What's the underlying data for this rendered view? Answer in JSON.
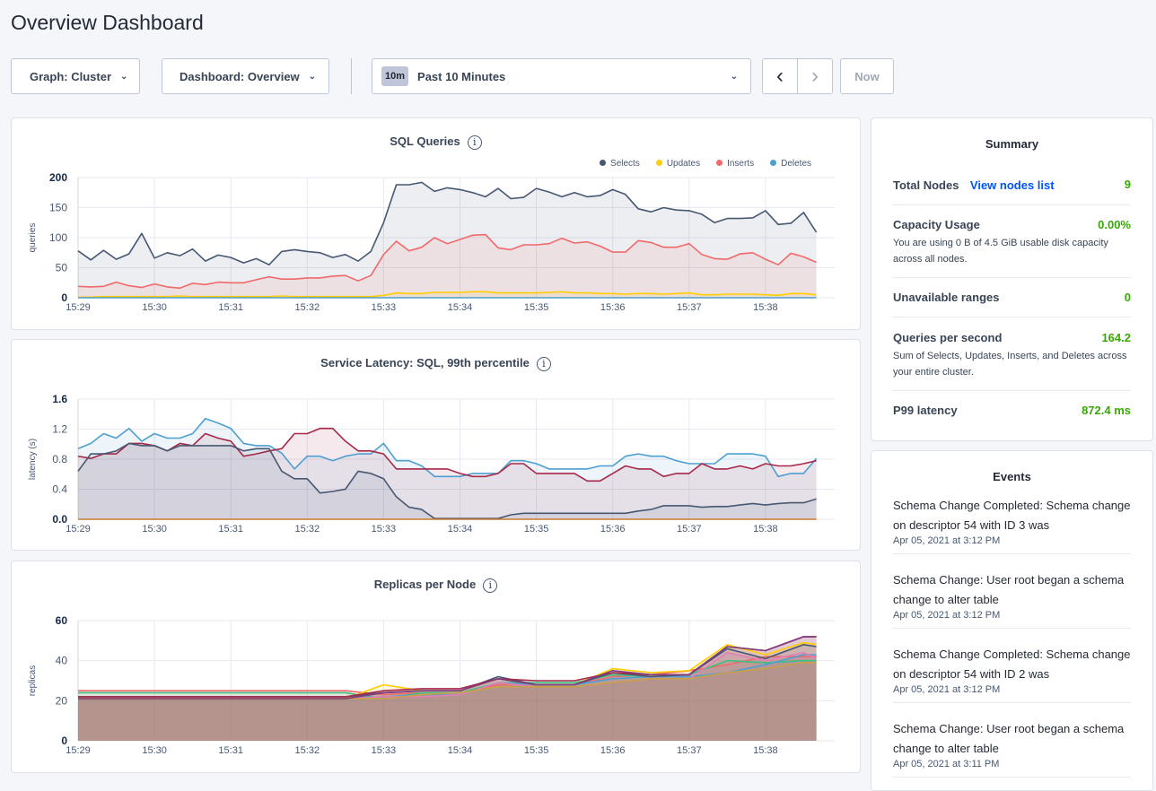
{
  "page": {
    "title": "Overview Dashboard"
  },
  "toolbar": {
    "graph": "Graph: Cluster",
    "dashboard": "Dashboard: Overview",
    "range_badge": "10m",
    "range": "Past 10 Minutes",
    "prev": "‹",
    "next": "›",
    "now": "Now"
  },
  "x_times": [
    "15:29:00",
    "15:29:10",
    "15:29:20",
    "15:29:30",
    "15:29:40",
    "15:29:50",
    "15:30:00",
    "15:30:10",
    "15:30:20",
    "15:30:30",
    "15:30:40",
    "15:30:50",
    "15:31:00",
    "15:31:10",
    "15:31:20",
    "15:31:30",
    "15:31:40",
    "15:31:50",
    "15:32:00",
    "15:32:10",
    "15:32:20",
    "15:32:30",
    "15:32:40",
    "15:32:50",
    "15:33:00",
    "15:33:10",
    "15:33:20",
    "15:33:30",
    "15:33:40",
    "15:33:50",
    "15:34:00",
    "15:34:10",
    "15:34:20",
    "15:34:30",
    "15:34:40",
    "15:34:50",
    "15:35:00",
    "15:35:10",
    "15:35:20",
    "15:35:30",
    "15:35:40",
    "15:35:50",
    "15:36:00",
    "15:36:10",
    "15:36:20",
    "15:36:30",
    "15:36:40",
    "15:36:50",
    "15:37:00",
    "15:37:10",
    "15:37:20",
    "15:37:30",
    "15:37:40",
    "15:37:50",
    "15:38:00",
    "15:38:10",
    "15:38:20",
    "15:38:30",
    "15:38:40"
  ],
  "chart_data": [
    {
      "type": "area",
      "title": "SQL Queries",
      "ylabel": "queries",
      "ylim": [
        0,
        200
      ],
      "yticks": [
        "0",
        "50",
        "100",
        "150",
        "200"
      ],
      "xticks": [
        "15:29",
        "15:30",
        "15:31",
        "15:32",
        "15:33",
        "15:34",
        "15:35",
        "15:36",
        "15:37",
        "15:38"
      ],
      "legend": "top-right",
      "grid": true,
      "series": [
        {
          "name": "Selects",
          "color": "#475872",
          "values": [
            78,
            63,
            79,
            64,
            73,
            107,
            66,
            75,
            70,
            81,
            61,
            71,
            67,
            58,
            65,
            55,
            77,
            80,
            77,
            75,
            67,
            72,
            61,
            77,
            125,
            188,
            188,
            192,
            177,
            183,
            180,
            175,
            168,
            182,
            165,
            167,
            182,
            176,
            168,
            175,
            168,
            170,
            180,
            172,
            148,
            143,
            150,
            146,
            145,
            139,
            125,
            132,
            132,
            133,
            145,
            122,
            124,
            142,
            109
          ]
        },
        {
          "name": "Updates",
          "color": "#ffcd02",
          "values": [
            1,
            1,
            2,
            2,
            2,
            2,
            2,
            2,
            3,
            2,
            2,
            2,
            2,
            2,
            2,
            2,
            3,
            2,
            2,
            2,
            2,
            2,
            2,
            2,
            4,
            8,
            7,
            7,
            9,
            9,
            9,
            10,
            10,
            8,
            8,
            8,
            8,
            9,
            10,
            8,
            8,
            7,
            7,
            6,
            7,
            7,
            6,
            7,
            8,
            5,
            5,
            6,
            6,
            6,
            5,
            4,
            7,
            7,
            5
          ]
        },
        {
          "name": "Inserts",
          "color": "#f16969",
          "values": [
            19,
            18,
            19,
            26,
            20,
            17,
            23,
            18,
            16,
            24,
            22,
            26,
            25,
            25,
            30,
            35,
            31,
            31,
            33,
            33,
            36,
            37,
            28,
            37,
            72,
            94,
            78,
            84,
            100,
            90,
            97,
            104,
            105,
            83,
            80,
            88,
            88,
            90,
            99,
            91,
            93,
            86,
            76,
            76,
            95,
            92,
            84,
            84,
            90,
            72,
            65,
            64,
            73,
            75,
            64,
            55,
            74,
            68,
            59
          ]
        },
        {
          "name": "Deletes",
          "color": "#4e9fd1",
          "values": [
            0,
            0,
            0,
            0,
            0,
            0,
            0,
            0,
            0,
            0,
            0,
            0,
            0,
            0,
            0,
            0,
            0,
            0,
            0,
            0,
            0,
            0,
            0,
            0,
            0,
            0,
            0,
            0,
            0,
            0,
            0,
            0,
            0,
            0,
            0,
            0,
            0,
            0,
            0,
            0,
            0,
            0,
            0,
            0,
            0,
            0,
            0,
            0,
            0,
            0,
            0,
            0,
            0,
            0,
            0,
            0,
            0,
            0,
            0
          ]
        }
      ]
    },
    {
      "type": "area",
      "title": "Service Latency: SQL, 99th percentile",
      "ylabel": "latency (s)",
      "ylim": [
        0,
        1.6
      ],
      "yticks": [
        "0.0",
        "0.4",
        "0.8",
        "1.2",
        "1.6"
      ],
      "xticks": [
        "15:29",
        "15:30",
        "15:31",
        "15:32",
        "15:33",
        "15:34",
        "15:35",
        "15:36",
        "15:37",
        "15:38"
      ],
      "grid": true,
      "series": [
        {
          "color": "#4e9fd1",
          "values": [
            0.94,
            1.01,
            1.14,
            1.08,
            1.21,
            1.04,
            1.14,
            1.08,
            1.08,
            1.14,
            1.34,
            1.28,
            1.21,
            1.01,
            0.98,
            0.98,
            0.88,
            0.67,
            0.84,
            0.84,
            0.78,
            0.84,
            0.87,
            0.87,
            1.01,
            0.78,
            0.78,
            0.71,
            0.57,
            0.57,
            0.57,
            0.61,
            0.61,
            0.61,
            0.78,
            0.78,
            0.74,
            0.67,
            0.67,
            0.67,
            0.67,
            0.71,
            0.71,
            0.84,
            0.87,
            0.84,
            0.84,
            0.78,
            0.74,
            0.74,
            0.74,
            0.87,
            0.87,
            0.87,
            0.84,
            0.57,
            0.61,
            0.61,
            0.81
          ]
        },
        {
          "color": "#a7294a",
          "values": [
            0.84,
            0.81,
            0.87,
            0.87,
            1.01,
            1.01,
            0.98,
            0.91,
            1.01,
            0.98,
            1.14,
            1.08,
            1.04,
            0.84,
            0.87,
            0.91,
            0.94,
            1.14,
            1.14,
            1.21,
            1.21,
            1.04,
            0.91,
            0.91,
            0.87,
            0.67,
            0.67,
            0.67,
            0.67,
            0.67,
            0.61,
            0.57,
            0.57,
            0.61,
            0.74,
            0.74,
            0.61,
            0.61,
            0.61,
            0.61,
            0.51,
            0.51,
            0.61,
            0.71,
            0.67,
            0.67,
            0.57,
            0.61,
            0.61,
            0.74,
            0.67,
            0.67,
            0.71,
            0.67,
            0.74,
            0.71,
            0.71,
            0.74,
            0.78
          ]
        },
        {
          "color": "#475872",
          "values": [
            0.64,
            0.87,
            0.87,
            0.91,
            1.01,
            0.98,
            0.98,
            0.91,
            0.98,
            0.98,
            0.98,
            0.98,
            0.98,
            0.91,
            0.94,
            0.94,
            0.64,
            0.54,
            0.54,
            0.35,
            0.37,
            0.4,
            0.64,
            0.61,
            0.54,
            0.3,
            0.16,
            0.13,
            0.01,
            0.01,
            0.01,
            0.01,
            0.01,
            0.01,
            0.06,
            0.08,
            0.08,
            0.08,
            0.08,
            0.08,
            0.08,
            0.08,
            0.08,
            0.08,
            0.11,
            0.13,
            0.18,
            0.18,
            0.18,
            0.16,
            0.17,
            0.17,
            0.19,
            0.21,
            0.19,
            0.21,
            0.22,
            0.22,
            0.27
          ]
        },
        {
          "color": "#c97a2f",
          "values": [
            0,
            0,
            0,
            0,
            0,
            0,
            0,
            0,
            0,
            0,
            0,
            0,
            0,
            0,
            0,
            0,
            0,
            0,
            0,
            0,
            0,
            0,
            0,
            0,
            0,
            0,
            0,
            0,
            0,
            0,
            0,
            0,
            0,
            0,
            0,
            0,
            0,
            0,
            0,
            0,
            0,
            0,
            0,
            0,
            0,
            0,
            0,
            0,
            0,
            0,
            0,
            0,
            0,
            0,
            0,
            0,
            0,
            0,
            0
          ]
        }
      ]
    },
    {
      "type": "area",
      "title": "Replicas per Node",
      "ylabel": "replicas",
      "ylim": [
        0,
        60
      ],
      "yticks": [
        "0",
        "20",
        "40",
        "60"
      ],
      "xticks": [
        "15:29",
        "15:30",
        "15:31",
        "15:32",
        "15:33",
        "15:34",
        "15:35",
        "15:36",
        "15:37",
        "15:38"
      ],
      "grid": true,
      "x": [
        "15:29:00",
        "15:29:30",
        "15:30:00",
        "15:30:30",
        "15:31:00",
        "15:31:30",
        "15:32:00",
        "15:32:30",
        "15:33:00",
        "15:33:30",
        "15:34:00",
        "15:34:30",
        "15:35:00",
        "15:35:30",
        "15:36:00",
        "15:36:30",
        "15:37:00",
        "15:37:30",
        "15:38:00",
        "15:38:30",
        "15:38:40"
      ],
      "series": [
        {
          "color": "#f16969",
          "values": [
            25,
            25,
            25,
            25,
            25,
            25,
            25,
            25,
            23,
            24,
            24,
            28,
            28,
            28,
            32,
            33,
            35,
            38,
            42,
            42,
            42
          ]
        },
        {
          "color": "#3fbf7f",
          "values": [
            24,
            24,
            24,
            24,
            24,
            24,
            24,
            24,
            21,
            24,
            24,
            29,
            29,
            29,
            33,
            32,
            33,
            40,
            39,
            40,
            40
          ]
        },
        {
          "color": "#4e9fd1",
          "values": [
            21,
            21,
            21,
            21,
            21,
            21,
            21,
            21,
            22,
            23,
            23,
            29,
            28,
            28,
            31,
            32,
            32,
            34,
            38,
            43,
            43
          ]
        },
        {
          "color": "#e57fb5",
          "values": [
            21,
            21,
            21,
            21,
            21,
            21,
            21,
            21,
            22,
            22,
            23,
            29,
            27,
            27,
            29,
            31,
            31,
            44,
            40,
            44,
            41
          ]
        },
        {
          "color": "#c8a04a",
          "values": [
            21,
            21,
            21,
            21,
            21,
            21,
            21,
            21,
            21,
            23,
            24,
            27,
            27,
            27,
            29,
            31,
            31,
            34,
            36,
            39,
            39
          ]
        },
        {
          "color": "#ffcd02",
          "values": [
            21,
            21,
            21,
            21,
            21,
            21,
            21,
            21,
            28,
            25,
            25,
            31,
            28,
            28,
            36,
            34,
            35,
            48,
            43,
            49,
            48
          ]
        },
        {
          "color": "#475872",
          "values": [
            22,
            22,
            22,
            22,
            22,
            22,
            22,
            22,
            24,
            25,
            25,
            32,
            28,
            28,
            34,
            32,
            33,
            46,
            41,
            48,
            47
          ]
        },
        {
          "color": "#a7294a",
          "values": [
            22,
            22,
            22,
            22,
            22,
            22,
            22,
            22,
            25,
            26,
            26,
            31,
            30,
            30,
            34,
            33,
            33,
            47,
            45,
            52,
            52
          ]
        },
        {
          "color": "#7e3c7e",
          "values": [
            21,
            21,
            21,
            21,
            21,
            21,
            21,
            21,
            24,
            25,
            25,
            31,
            28,
            28,
            35,
            33,
            33,
            47,
            45,
            52,
            52
          ]
        }
      ]
    }
  ],
  "summary": {
    "title": "Summary",
    "total_nodes": {
      "label": "Total Nodes",
      "link": "View nodes list",
      "value": "9"
    },
    "capacity": {
      "label": "Capacity Usage",
      "value": "0.00%",
      "desc": "You are using 0 B of 4.5 GiB usable disk capacity across all nodes."
    },
    "unavailable": {
      "label": "Unavailable ranges",
      "value": "0"
    },
    "qps": {
      "label": "Queries per second",
      "value": "164.2",
      "desc": "Sum of Selects, Updates, Inserts, and Deletes across your entire cluster."
    },
    "p99": {
      "label": "P99 latency",
      "value": "872.4 ms"
    }
  },
  "events": {
    "title": "Events",
    "items": [
      {
        "text": "Schema Change Completed: Schema change on descriptor 54 with ID 3 was",
        "date": "Apr 05, 2021 at 3:12 PM"
      },
      {
        "text": "Schema Change: User root began a schema change to alter table",
        "date": "Apr 05, 2021 at 3:12 PM"
      },
      {
        "text": "Schema Change Completed: Schema change on descriptor 54 with ID 2 was",
        "date": "Apr 05, 2021 at 3:12 PM"
      },
      {
        "text": "Schema Change: User root began a schema change to alter table",
        "date": "Apr 05, 2021 at 3:11 PM"
      }
    ]
  }
}
